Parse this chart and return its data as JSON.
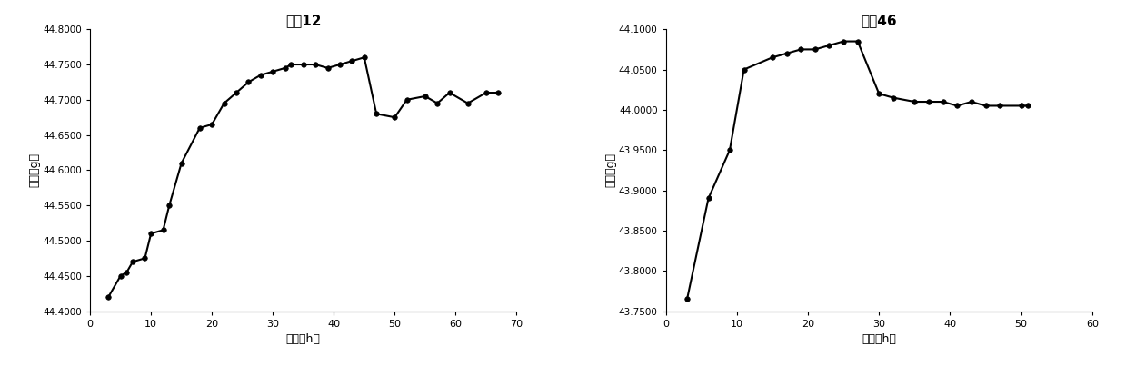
{
  "plot1": {
    "title": "岩心12",
    "xlabel": "时间（h）",
    "ylabel": "质量（g）",
    "x": [
      3,
      5,
      6,
      7,
      9,
      10,
      12,
      13,
      15,
      18,
      20,
      22,
      24,
      26,
      28,
      30,
      32,
      33,
      35,
      37,
      39,
      41,
      43,
      45,
      47,
      50,
      52,
      55,
      57,
      59,
      62,
      65,
      67
    ],
    "y": [
      44.42,
      44.45,
      44.455,
      44.47,
      44.475,
      44.51,
      44.515,
      44.55,
      44.61,
      44.66,
      44.665,
      44.695,
      44.71,
      44.725,
      44.735,
      44.74,
      44.745,
      44.75,
      44.75,
      44.75,
      44.745,
      44.75,
      44.755,
      44.76,
      44.68,
      44.675,
      44.7,
      44.705,
      44.695,
      44.71,
      44.695,
      44.71,
      44.71
    ],
    "xlim": [
      0,
      70
    ],
    "ylim": [
      44.4,
      44.8
    ],
    "xticks": [
      0,
      10,
      20,
      30,
      40,
      50,
      60,
      70
    ],
    "yticks": [
      44.4,
      44.45,
      44.5,
      44.55,
      44.6,
      44.65,
      44.7,
      44.75,
      44.8
    ],
    "yticklabels": [
      "44.4000",
      "44.4500",
      "44.5000",
      "44.5500",
      "44.6000",
      "44.6500",
      "44.7000",
      "44.7500",
      "44.8000"
    ]
  },
  "plot2": {
    "title": "岩心46",
    "xlabel": "时间（h）",
    "ylabel": "质量（g）",
    "x": [
      3,
      6,
      9,
      11,
      15,
      17,
      19,
      21,
      23,
      25,
      27,
      30,
      32,
      35,
      37,
      39,
      41,
      43,
      45,
      47,
      50,
      51
    ],
    "y": [
      43.765,
      43.89,
      43.95,
      44.05,
      44.065,
      44.07,
      44.075,
      44.075,
      44.08,
      44.085,
      44.085,
      44.02,
      44.015,
      44.01,
      44.01,
      44.01,
      44.005,
      44.01,
      44.005,
      44.005,
      44.005,
      44.005
    ],
    "xlim": [
      0,
      60
    ],
    "ylim": [
      43.75,
      44.1
    ],
    "xticks": [
      0,
      10,
      20,
      30,
      40,
      50,
      60
    ],
    "yticks": [
      43.75,
      43.8,
      43.85,
      43.9,
      43.95,
      44.0,
      44.05,
      44.1
    ],
    "yticklabels": [
      "43.7500",
      "43.8000",
      "43.8500",
      "43.9000",
      "43.9500",
      "44.0000",
      "44.0500",
      "44.1000"
    ]
  },
  "line_color": "#000000",
  "marker": "o",
  "markersize": 4,
  "linewidth": 1.5,
  "markerfacecolor": "#000000"
}
